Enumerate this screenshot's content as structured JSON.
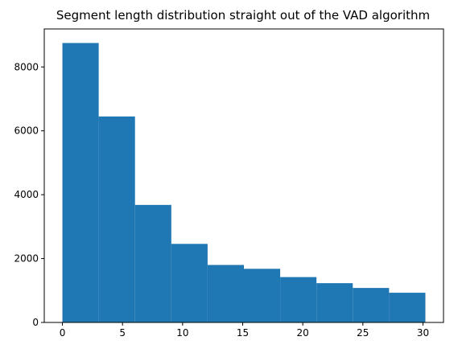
{
  "chart_data": {
    "type": "bar",
    "title": "Segment length distribution straight out of the VAD algorithm",
    "xlabel": "",
    "ylabel": "",
    "bin_edges": [
      0,
      3.02,
      6.04,
      9.06,
      12.08,
      15.1,
      18.12,
      21.14,
      24.16,
      27.18,
      30.2
    ],
    "values": [
      8750,
      6450,
      3680,
      2460,
      1800,
      1680,
      1420,
      1230,
      1080,
      930
    ],
    "xlim": [
      -1.51,
      31.71
    ],
    "ylim": [
      0,
      9190
    ],
    "xticks": [
      0,
      5,
      10,
      15,
      20,
      25,
      30
    ],
    "xtick_labels": [
      "0",
      "5",
      "10",
      "15",
      "20",
      "25",
      "30"
    ],
    "yticks": [
      0,
      2000,
      4000,
      6000,
      8000
    ],
    "ytick_labels": [
      "0",
      "2000",
      "4000",
      "6000",
      "8000"
    ],
    "bar_color": "#1f77b4",
    "grid": false,
    "legend": "none"
  }
}
